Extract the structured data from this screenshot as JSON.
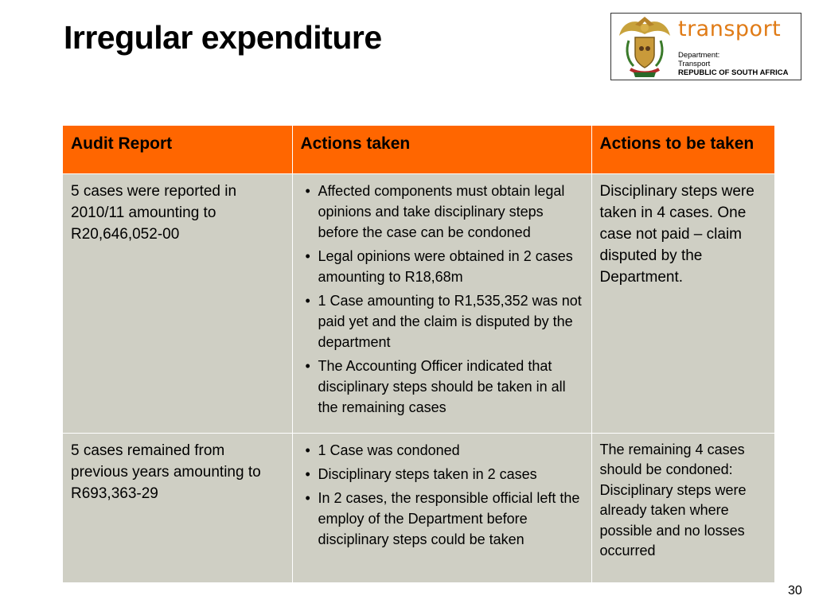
{
  "slide": {
    "title": "Irregular expenditure",
    "page_number": "30"
  },
  "logo": {
    "word": "transport",
    "line1": "Department:",
    "line2": "Transport",
    "line3": "REPUBLIC OF SOUTH AFRICA",
    "color": "#e07b16"
  },
  "table": {
    "headers": [
      "Audit Report",
      "Actions taken",
      "Actions to be taken"
    ],
    "header_color": "#ff6600",
    "cell_color": "#cfcfc4",
    "rows": [
      {
        "audit": "5 cases were reported in 2010/11 amounting to R20,646,052-00",
        "actions": [
          "Affected components must obtain legal opinions and take disciplinary steps before the case can be condoned",
          "Legal opinions were obtained in 2 cases amounting to R18,68m",
          "1 Case amounting to R1,535,352 was not paid yet and the claim is disputed by the department",
          "The Accounting Officer indicated that disciplinary steps should be taken in all the remaining cases"
        ],
        "to_be": "Disciplinary steps were taken in 4 cases. One case not paid – claim disputed by the Department."
      },
      {
        "audit": "5 cases remained from previous years amounting to R693,363-29",
        "actions": [
          "1 Case was condoned",
          "Disciplinary steps taken in 2 cases",
          "In 2 cases, the responsible official left the employ of the Department before disciplinary steps could be taken"
        ],
        "to_be": "The remaining 4 cases should be condoned: Disciplinary steps were already taken where possible and no losses occurred"
      }
    ]
  }
}
